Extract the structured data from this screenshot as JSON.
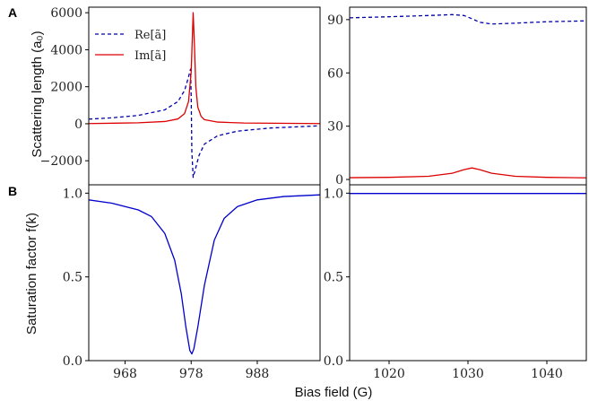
{
  "panel_labels": [
    "A",
    "B"
  ],
  "ylabel_top": "Scattering length (a₀)",
  "ylabel_bottom": "Saturation factor f(k)",
  "xlabel": "Bias field (G)",
  "legend": [
    {
      "label": "Re[ã]",
      "style": "dashed",
      "color": "#0000aa"
    },
    {
      "label": "Im[ã]",
      "style": "solid",
      "color": "#dd0000"
    }
  ],
  "colors": {
    "re": "#0000aa",
    "im": "#dd0000",
    "f": "#0000cc"
  },
  "chart_data": [
    {
      "type": "line",
      "panel": "A-left",
      "xlim": [
        962.5,
        997.5
      ],
      "ylim": [
        -3300,
        6300
      ],
      "yticks": [
        -2000,
        0,
        2000,
        4000,
        6000
      ],
      "ytick_labels": [
        "−2000",
        "0",
        "2000",
        "4000",
        "6000"
      ],
      "series": [
        {
          "name": "Re[ã]",
          "x": [
            962.5,
            966,
            970,
            974,
            976,
            977,
            977.5,
            977.9,
            978.0,
            978.1,
            978.3,
            978.6,
            979.2,
            980,
            982,
            985,
            990,
            997.5
          ],
          "values": [
            250,
            320,
            450,
            750,
            1200,
            1800,
            2400,
            2950,
            1500,
            -1500,
            -2900,
            -2500,
            -1700,
            -1100,
            -650,
            -400,
            -230,
            -110
          ]
        },
        {
          "name": "Im[ã]",
          "x": [
            962.5,
            970,
            974,
            976,
            977,
            977.6,
            978.0,
            978.3,
            978.5,
            978.7,
            979.0,
            979.5,
            980,
            982,
            986,
            997.5
          ],
          "values": [
            10,
            50,
            120,
            260,
            550,
            1200,
            2800,
            6000,
            4200,
            2000,
            900,
            400,
            220,
            90,
            40,
            10
          ]
        }
      ]
    },
    {
      "type": "line",
      "panel": "A-right",
      "xlim": [
        1015,
        1045
      ],
      "ylim": [
        -3,
        97
      ],
      "yticks": [
        0,
        30,
        60,
        90
      ],
      "ytick_labels": [
        "0",
        "30",
        "60",
        "90"
      ],
      "series": [
        {
          "name": "Re[ã]",
          "x": [
            1015,
            1020,
            1025,
            1028,
            1029.5,
            1030.5,
            1031.5,
            1033,
            1036,
            1040,
            1045
          ],
          "values": [
            91,
            91.6,
            92.3,
            92.8,
            92.3,
            90.5,
            88.5,
            87.5,
            88,
            88.8,
            89.3
          ]
        },
        {
          "name": "Im[ã]",
          "x": [
            1015,
            1020,
            1025,
            1028,
            1029.5,
            1030.5,
            1031.5,
            1033,
            1036,
            1040,
            1045
          ],
          "values": [
            1.0,
            1.2,
            1.8,
            3.5,
            5.5,
            6.5,
            5.5,
            3.5,
            1.8,
            1.2,
            0.9
          ]
        }
      ]
    },
    {
      "type": "line",
      "panel": "B-left",
      "xlim": [
        962.5,
        997.5
      ],
      "ylim": [
        0,
        1.05
      ],
      "xticks": [
        968,
        978,
        988
      ],
      "xtick_labels": [
        "968",
        "978",
        "988"
      ],
      "yticks": [
        0,
        0.5,
        1.0
      ],
      "ytick_labels": [
        "0.0",
        "0.5",
        "1.0"
      ],
      "series": [
        {
          "name": "f(k)",
          "x": [
            962.5,
            966,
            970,
            972,
            974,
            975.5,
            976.5,
            977.2,
            977.8,
            978.1,
            978.4,
            979,
            980,
            981.5,
            983,
            985,
            988,
            992,
            997.5
          ],
          "values": [
            0.96,
            0.94,
            0.9,
            0.86,
            0.76,
            0.6,
            0.4,
            0.2,
            0.06,
            0.04,
            0.07,
            0.2,
            0.45,
            0.72,
            0.85,
            0.92,
            0.96,
            0.98,
            0.99
          ]
        }
      ]
    },
    {
      "type": "line",
      "panel": "B-right",
      "xlim": [
        1015,
        1045
      ],
      "ylim": [
        0,
        1.05
      ],
      "xticks": [
        1020,
        1030,
        1040
      ],
      "xtick_labels": [
        "1020",
        "1030",
        "1040"
      ],
      "yticks": [
        0,
        0.5,
        1.0
      ],
      "ytick_labels": [
        "0.0",
        "0.5",
        "1.0"
      ],
      "series": [
        {
          "name": "f(k)",
          "x": [
            1015,
            1045
          ],
          "values": [
            0.998,
            0.998
          ]
        }
      ]
    }
  ]
}
